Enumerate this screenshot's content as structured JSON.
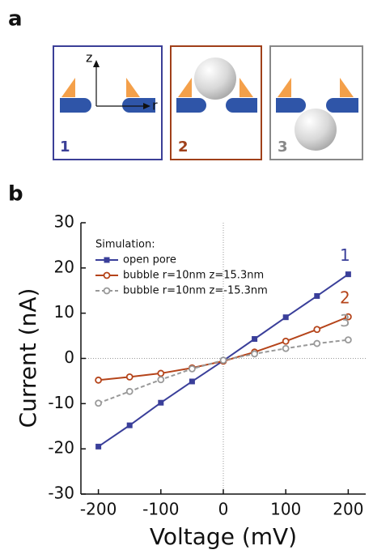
{
  "figure": {
    "panel_labels": [
      "a",
      "b"
    ],
    "diagram": {
      "axis_labels": [
        "z",
        "r"
      ],
      "cases": [
        "1",
        "2",
        "3"
      ]
    }
  },
  "chart_data": {
    "type": "line",
    "x_label": "Voltage (mV)",
    "y_label": "Current (nA)",
    "legend_title": "Simulation:",
    "x": [
      -200,
      -150,
      -100,
      -50,
      0,
      50,
      100,
      150,
      200
    ],
    "xlim": [
      -228,
      228
    ],
    "xticks": [
      -200,
      -100,
      0,
      100,
      200
    ],
    "ylim": [
      -30,
      30
    ],
    "yticks": [
      -30,
      -20,
      -10,
      0,
      10,
      20,
      30
    ],
    "zero_lines": true,
    "legend": "upper left",
    "series": [
      {
        "name": "open pore",
        "label": "1",
        "color": "#3a3f9a",
        "marker": "square",
        "dash": false,
        "values": [
          -19.5,
          -14.8,
          -9.8,
          -5.1,
          -0.5,
          4.3,
          9.1,
          13.8,
          18.6
        ]
      },
      {
        "name": "bubble r=10nm z=15.3nm",
        "label": "2",
        "color": "#b5441a",
        "marker": "open-circle",
        "dash": false,
        "values": [
          -4.8,
          -4.1,
          -3.3,
          -2.1,
          -0.6,
          1.4,
          3.8,
          6.4,
          9.2
        ]
      },
      {
        "name": "bubble r=10nm z=-15.3nm",
        "label": "3",
        "color": "#999999",
        "marker": "open-circle",
        "dash": true,
        "values": [
          -9.9,
          -7.3,
          -4.7,
          -2.3,
          -0.4,
          1.0,
          2.2,
          3.3,
          4.1
        ]
      }
    ]
  }
}
